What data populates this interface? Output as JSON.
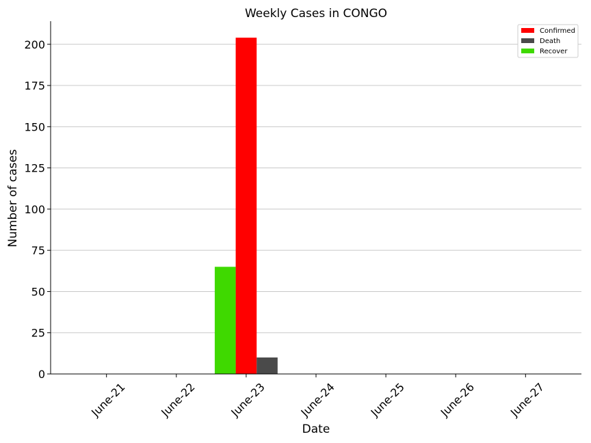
{
  "chart_data": {
    "type": "bar",
    "title": "Weekly Cases in CONGO",
    "xlabel": "Date",
    "ylabel": "Number of cases",
    "categories": [
      "June-21",
      "June-22",
      "June-23",
      "June-24",
      "June-25",
      "June-26",
      "June-27"
    ],
    "series": [
      {
        "name": "Confirmed",
        "color": "#ff0000",
        "values": [
          0,
          0,
          204,
          0,
          0,
          0,
          0
        ]
      },
      {
        "name": "Death",
        "color": "#4a4a4a",
        "values": [
          0,
          0,
          10,
          0,
          0,
          0,
          0
        ]
      },
      {
        "name": "Recover",
        "color": "#3fd900",
        "values": [
          0,
          0,
          65,
          0,
          0,
          0,
          0
        ]
      }
    ],
    "ylim": [
      0,
      214
    ],
    "yticks": [
      0,
      25,
      50,
      75,
      100,
      125,
      150,
      175,
      200
    ],
    "grid": "horizontal",
    "legend_position": "top-right"
  }
}
